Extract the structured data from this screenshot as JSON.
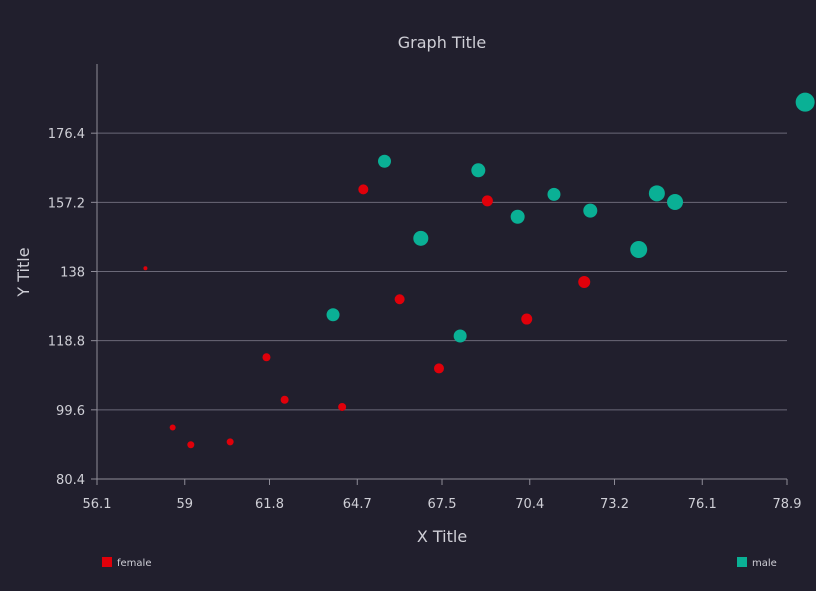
{
  "chart_data": {
    "type": "scatter",
    "title": "Graph Title",
    "xlabel": "X Title",
    "ylabel": "Y Title",
    "xlim": [
      56.1,
      78.9
    ],
    "ylim": [
      80.4,
      195.6
    ],
    "x_ticks": [
      "56.1",
      "59",
      "61.8",
      "64.7",
      "67.5",
      "70.4",
      "73.2",
      "76.1",
      "78.9"
    ],
    "y_ticks": [
      "80.4",
      "99.6",
      "118.8",
      "138",
      "157.2",
      "176.4"
    ],
    "grid": "horizontal",
    "legend": "bottom",
    "series": [
      {
        "name": "female",
        "color": "#e0000a",
        "points": [
          {
            "x": 57.7,
            "y": 138.9,
            "size": 2
          },
          {
            "x": 58.6,
            "y": 94.7,
            "size": 3
          },
          {
            "x": 59.2,
            "y": 89.9,
            "size": 3.5
          },
          {
            "x": 60.5,
            "y": 90.7,
            "size": 3.5
          },
          {
            "x": 61.7,
            "y": 114.2,
            "size": 4
          },
          {
            "x": 62.3,
            "y": 102.4,
            "size": 4
          },
          {
            "x": 64.2,
            "y": 100.4,
            "size": 4
          },
          {
            "x": 64.9,
            "y": 160.8,
            "size": 5
          },
          {
            "x": 66.1,
            "y": 130.3,
            "size": 5
          },
          {
            "x": 67.4,
            "y": 111.1,
            "size": 5
          },
          {
            "x": 69.0,
            "y": 157.6,
            "size": 5.5
          },
          {
            "x": 70.3,
            "y": 124.8,
            "size": 5.5
          },
          {
            "x": 72.2,
            "y": 135.1,
            "size": 6
          }
        ]
      },
      {
        "name": "male",
        "color": "#0ab095",
        "points": [
          {
            "x": 63.9,
            "y": 126.0,
            "size": 6.5
          },
          {
            "x": 65.6,
            "y": 168.6,
            "size": 6.5
          },
          {
            "x": 66.8,
            "y": 147.2,
            "size": 7.5
          },
          {
            "x": 68.1,
            "y": 120.1,
            "size": 6.5
          },
          {
            "x": 68.7,
            "y": 166.1,
            "size": 7
          },
          {
            "x": 70.0,
            "y": 153.2,
            "size": 7
          },
          {
            "x": 71.2,
            "y": 159.4,
            "size": 6.5
          },
          {
            "x": 72.4,
            "y": 154.9,
            "size": 7
          },
          {
            "x": 74.0,
            "y": 144.1,
            "size": 8.5
          },
          {
            "x": 74.6,
            "y": 159.7,
            "size": 8
          },
          {
            "x": 75.2,
            "y": 157.3,
            "size": 8
          },
          {
            "x": 79.5,
            "y": 185.0,
            "size": 9.5
          }
        ]
      }
    ]
  }
}
